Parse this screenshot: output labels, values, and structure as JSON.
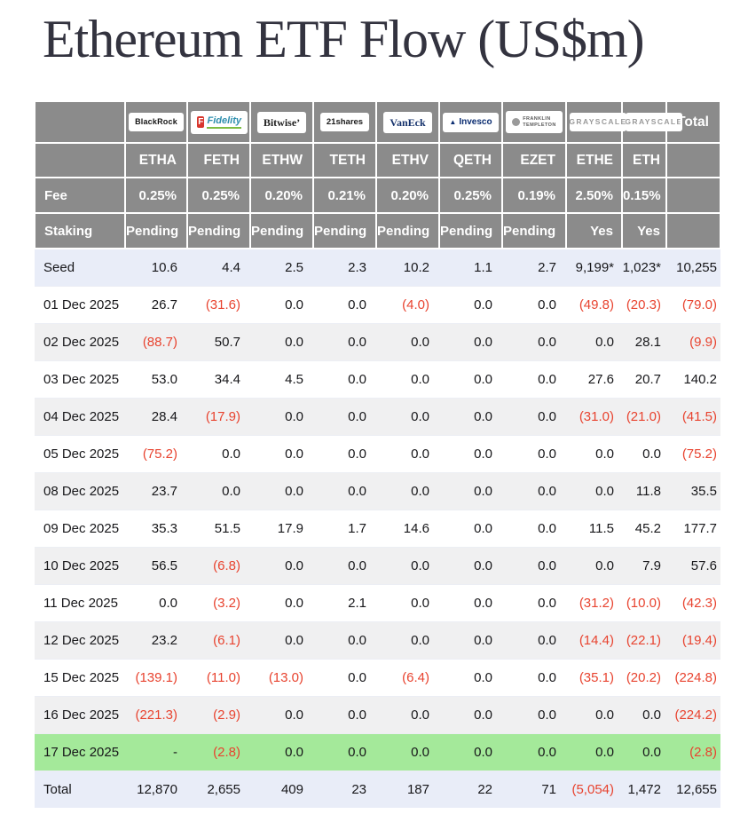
{
  "title": "Ethereum ETF Flow (US$m)",
  "colors": {
    "header_bg": "#8b8b8b",
    "negative_red": "#e8432f",
    "green_row": "#a4e99a",
    "tint_row": "#e9edf8",
    "alt_row": "#f0f0f1"
  },
  "table": {
    "fee_label": "Fee",
    "staking_label": "Staking",
    "total_label": "Total",
    "providers": [
      {
        "brand": "BlackRock",
        "style": "blackrock",
        "ticker": "ETHA",
        "fee": "0.25%",
        "staking": "Pending"
      },
      {
        "brand": "Fidelity",
        "style": "fidelity",
        "ticker": "FETH",
        "fee": "0.25%",
        "staking": "Pending"
      },
      {
        "brand": "Bitwise’",
        "style": "bitwise",
        "ticker": "ETHW",
        "fee": "0.20%",
        "staking": "Pending"
      },
      {
        "brand": "21shares",
        "style": "21shares",
        "ticker": "TETH",
        "fee": "0.21%",
        "staking": "Pending"
      },
      {
        "brand": "VanEck",
        "style": "vaneck",
        "ticker": "ETHV",
        "fee": "0.20%",
        "staking": "Pending"
      },
      {
        "brand": "Invesco",
        "style": "invesco",
        "ticker": "QETH",
        "fee": "0.25%",
        "staking": "Pending"
      },
      {
        "brand": "FRANKLIN TEMPLETON",
        "style": "franklin",
        "ticker": "EZET",
        "fee": "0.19%",
        "staking": "Pending"
      },
      {
        "brand": "GRAYSCALE",
        "style": "grayscale",
        "ticker": "ETHE",
        "fee": "2.50%",
        "staking": "Yes"
      },
      {
        "brand": "GRAYSCALE",
        "style": "grayscale",
        "ticker": "ETH",
        "fee": "0.15%",
        "staking": "Yes"
      }
    ],
    "rows": [
      {
        "label": "Seed",
        "highlight": "seed",
        "values": [
          "10.6",
          "4.4",
          "2.5",
          "2.3",
          "10.2",
          "1.1",
          "2.7",
          "9,199*",
          "1,023*",
          "10,255"
        ]
      },
      {
        "label": "01 Dec 2025",
        "highlight": "",
        "values": [
          "26.7",
          "(31.6)",
          "0.0",
          "0.0",
          "(4.0)",
          "0.0",
          "0.0",
          "(49.8)",
          "(20.3)",
          "(79.0)"
        ]
      },
      {
        "label": "02 Dec 2025",
        "highlight": "alt",
        "values": [
          "(88.7)",
          "50.7",
          "0.0",
          "0.0",
          "0.0",
          "0.0",
          "0.0",
          "0.0",
          "28.1",
          "(9.9)"
        ]
      },
      {
        "label": "03 Dec 2025",
        "highlight": "",
        "values": [
          "53.0",
          "34.4",
          "4.5",
          "0.0",
          "0.0",
          "0.0",
          "0.0",
          "27.6",
          "20.7",
          "140.2"
        ]
      },
      {
        "label": "04 Dec 2025",
        "highlight": "alt",
        "values": [
          "28.4",
          "(17.9)",
          "0.0",
          "0.0",
          "0.0",
          "0.0",
          "0.0",
          "(31.0)",
          "(21.0)",
          "(41.5)"
        ]
      },
      {
        "label": "05 Dec 2025",
        "highlight": "",
        "values": [
          "(75.2)",
          "0.0",
          "0.0",
          "0.0",
          "0.0",
          "0.0",
          "0.0",
          "0.0",
          "0.0",
          "(75.2)"
        ]
      },
      {
        "label": "08 Dec 2025",
        "highlight": "alt",
        "values": [
          "23.7",
          "0.0",
          "0.0",
          "0.0",
          "0.0",
          "0.0",
          "0.0",
          "0.0",
          "11.8",
          "35.5"
        ]
      },
      {
        "label": "09 Dec 2025",
        "highlight": "",
        "values": [
          "35.3",
          "51.5",
          "17.9",
          "1.7",
          "14.6",
          "0.0",
          "0.0",
          "11.5",
          "45.2",
          "177.7"
        ]
      },
      {
        "label": "10 Dec 2025",
        "highlight": "alt",
        "values": [
          "56.5",
          "(6.8)",
          "0.0",
          "0.0",
          "0.0",
          "0.0",
          "0.0",
          "0.0",
          "7.9",
          "57.6"
        ]
      },
      {
        "label": "11 Dec 2025",
        "highlight": "",
        "values": [
          "0.0",
          "(3.2)",
          "0.0",
          "2.1",
          "0.0",
          "0.0",
          "0.0",
          "(31.2)",
          "(10.0)",
          "(42.3)"
        ]
      },
      {
        "label": "12 Dec 2025",
        "highlight": "alt",
        "values": [
          "23.2",
          "(6.1)",
          "0.0",
          "0.0",
          "0.0",
          "0.0",
          "0.0",
          "(14.4)",
          "(22.1)",
          "(19.4)"
        ]
      },
      {
        "label": "15 Dec 2025",
        "highlight": "",
        "values": [
          "(139.1)",
          "(11.0)",
          "(13.0)",
          "0.0",
          "(6.4)",
          "0.0",
          "0.0",
          "(35.1)",
          "(20.2)",
          "(224.8)"
        ]
      },
      {
        "label": "16 Dec 2025",
        "highlight": "alt",
        "values": [
          "(221.3)",
          "(2.9)",
          "0.0",
          "0.0",
          "0.0",
          "0.0",
          "0.0",
          "0.0",
          "0.0",
          "(224.2)"
        ]
      },
      {
        "label": "17 Dec 2025",
        "highlight": "green",
        "values": [
          "-",
          "(2.8)",
          "0.0",
          "0.0",
          "0.0",
          "0.0",
          "0.0",
          "0.0",
          "0.0",
          "(2.8)"
        ]
      },
      {
        "label": "Total",
        "highlight": "total",
        "values": [
          "12,870",
          "2,655",
          "409",
          "23",
          "187",
          "22",
          "71",
          "(5,054)",
          "1,472",
          "12,655"
        ]
      }
    ]
  }
}
